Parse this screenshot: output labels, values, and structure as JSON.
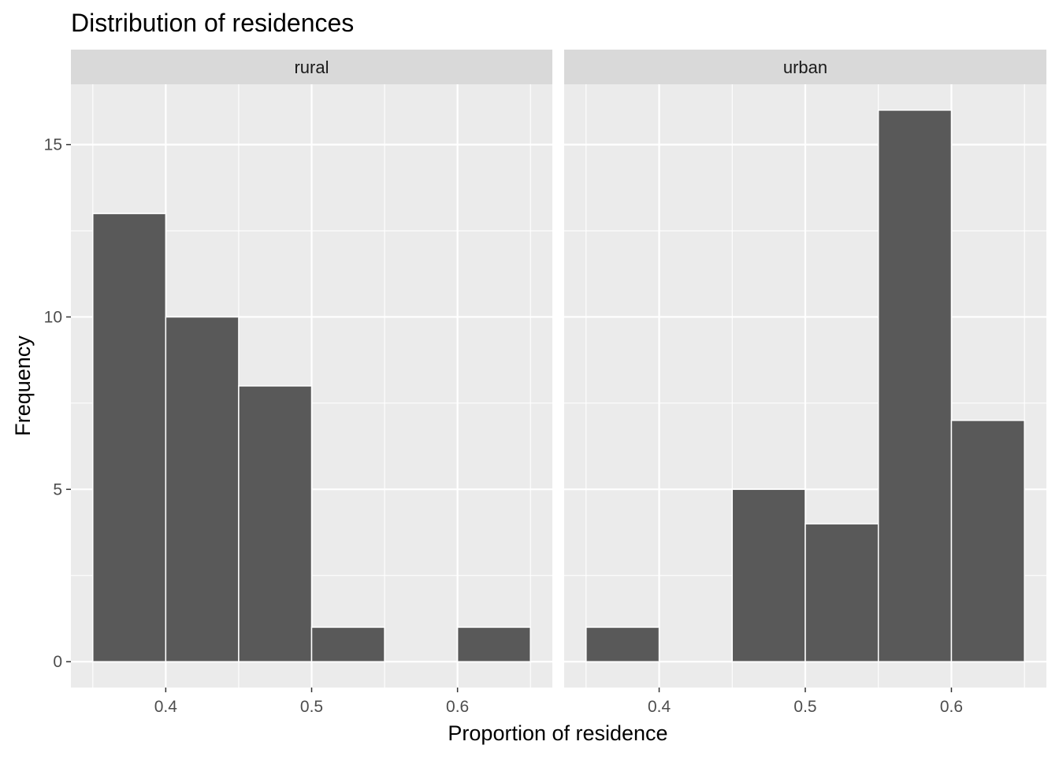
{
  "chart_data": {
    "type": "bar",
    "subtype": "faceted-histogram",
    "title": "Distribution of residences",
    "xlabel": "Proportion of residence",
    "ylabel": "Frequency",
    "xlim": [
      0.335,
      0.665
    ],
    "ylim": [
      -0.75,
      16.75
    ],
    "x_ticks": [
      0.4,
      0.5,
      0.6
    ],
    "x_tick_labels": [
      "0.4",
      "0.5",
      "0.6"
    ],
    "y_ticks": [
      0,
      5,
      10,
      15
    ],
    "y_tick_labels": [
      "0",
      "5",
      "10",
      "15"
    ],
    "bin_width": 0.05,
    "grid": true,
    "bar_color": "#595959",
    "bar_edge_color": "#ffffff",
    "panel_background": "#EBEBEB",
    "strip_background": "#D9D9D9",
    "facets": [
      {
        "label": "rural",
        "bins": [
          {
            "start": 0.35,
            "end": 0.4,
            "count": 13
          },
          {
            "start": 0.4,
            "end": 0.45,
            "count": 10
          },
          {
            "start": 0.45,
            "end": 0.5,
            "count": 8
          },
          {
            "start": 0.5,
            "end": 0.55,
            "count": 1
          },
          {
            "start": 0.55,
            "end": 0.6,
            "count": 0
          },
          {
            "start": 0.6,
            "end": 0.65,
            "count": 1
          }
        ]
      },
      {
        "label": "urban",
        "bins": [
          {
            "start": 0.35,
            "end": 0.4,
            "count": 1
          },
          {
            "start": 0.4,
            "end": 0.45,
            "count": 0
          },
          {
            "start": 0.45,
            "end": 0.5,
            "count": 5
          },
          {
            "start": 0.5,
            "end": 0.55,
            "count": 4
          },
          {
            "start": 0.55,
            "end": 0.6,
            "count": 16
          },
          {
            "start": 0.6,
            "end": 0.65,
            "count": 7
          }
        ]
      }
    ]
  }
}
